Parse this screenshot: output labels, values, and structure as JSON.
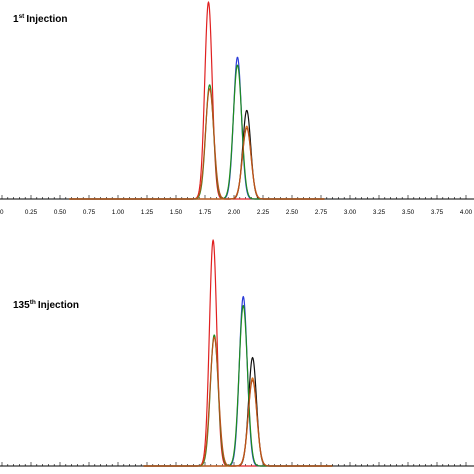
{
  "chart_data": [
    {
      "type": "line",
      "panel_label": {
        "number": "1",
        "suffix": "st",
        "text": "Injection"
      },
      "xlim": [
        0.0,
        4.0
      ],
      "x_ticks": [
        "0",
        "0.25",
        "0.50",
        "0.75",
        "1.00",
        "1.25",
        "1.50",
        "1.75",
        "2.00",
        "2.25",
        "2.50",
        "2.75",
        "3.00",
        "3.25",
        "3.50",
        "3.75",
        "4.00"
      ],
      "xlabel": "",
      "ylabel": "",
      "grid": false,
      "series": [
        {
          "color": "#e02020",
          "peaks": [
            {
              "rt": 1.78,
              "height": 1.0,
              "width": 0.032
            }
          ]
        },
        {
          "color": "#2a3bd8",
          "peaks": [
            {
              "rt": 2.03,
              "height": 0.72,
              "width": 0.034
            }
          ]
        },
        {
          "color": "#111111",
          "peaks": [
            {
              "rt": 2.11,
              "height": 0.45,
              "width": 0.034
            }
          ]
        },
        {
          "color": "#e07018",
          "peaks": [
            {
              "rt": 2.11,
              "height": 0.37,
              "width": 0.036
            }
          ]
        },
        {
          "color": "#1e8c1e",
          "peaks": [
            {
              "rt": 1.79,
              "height": 0.58,
              "width": 0.034
            },
            {
              "rt": 2.03,
              "height": 0.68,
              "width": 0.036
            }
          ]
        },
        {
          "color": "#b8521a",
          "peaks": [
            {
              "rt": 1.79,
              "height": 0.56,
              "width": 0.036
            },
            {
              "rt": 2.11,
              "height": 0.36,
              "width": 0.037
            }
          ]
        }
      ]
    },
    {
      "type": "line",
      "panel_label": {
        "number": "135",
        "suffix": "th",
        "text": "Injection"
      },
      "xlim": [
        0.0,
        4.0
      ],
      "x_ticks": [],
      "xlabel": "",
      "ylabel": "",
      "grid": false,
      "series": [
        {
          "color": "#e02020",
          "peaks": [
            {
              "rt": 1.82,
              "height": 1.0,
              "width": 0.032
            }
          ]
        },
        {
          "color": "#2a3bd8",
          "peaks": [
            {
              "rt": 2.08,
              "height": 0.75,
              "width": 0.034
            }
          ]
        },
        {
          "color": "#111111",
          "peaks": [
            {
              "rt": 2.16,
              "height": 0.48,
              "width": 0.034
            }
          ]
        },
        {
          "color": "#e07018",
          "peaks": [
            {
              "rt": 2.16,
              "height": 0.39,
              "width": 0.036
            }
          ]
        },
        {
          "color": "#1e8c1e",
          "peaks": [
            {
              "rt": 1.83,
              "height": 0.58,
              "width": 0.034
            },
            {
              "rt": 2.08,
              "height": 0.71,
              "width": 0.036
            }
          ]
        },
        {
          "color": "#b8521a",
          "peaks": [
            {
              "rt": 1.83,
              "height": 0.57,
              "width": 0.036
            },
            {
              "rt": 2.16,
              "height": 0.38,
              "width": 0.037
            }
          ]
        }
      ]
    }
  ]
}
